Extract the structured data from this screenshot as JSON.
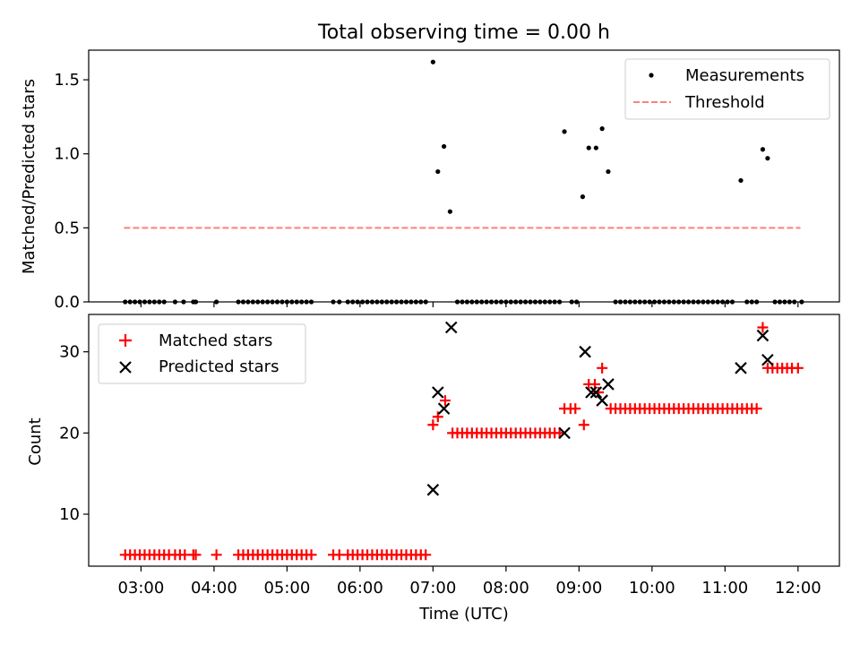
{
  "title": "Total observing time = 0.00 h",
  "chart_data": [
    {
      "type": "scatter",
      "ylabel": "Matched/Predicted stars",
      "xlabel": "",
      "xlim": [
        "02:17",
        "12:34"
      ],
      "ylim": [
        0,
        1.7
      ],
      "yticks": [
        0.0,
        0.5,
        1.0,
        1.5
      ],
      "yticklabels": [
        "0.0",
        "0.5",
        "1.0",
        "1.5"
      ],
      "grid": false,
      "legend_position": "top-right",
      "legend": {
        "measurements": "Measurements",
        "threshold": "Threshold"
      },
      "colors": {
        "measurements": "#000000",
        "threshold": "#ff7f7f"
      },
      "threshold": {
        "value": 0.5,
        "x_start": "02:46",
        "x_end": "12:02"
      },
      "series": [
        {
          "name": "Measurements",
          "points": [
            [
              "02:47",
              0
            ],
            [
              "02:51",
              0
            ],
            [
              "02:55",
              0
            ],
            [
              "02:59",
              0
            ],
            [
              "03:03",
              0
            ],
            [
              "03:07",
              0
            ],
            [
              "03:11",
              0
            ],
            [
              "03:15",
              0
            ],
            [
              "03:19",
              0
            ],
            [
              "03:28",
              0
            ],
            [
              "03:35",
              0
            ],
            [
              "03:43",
              0
            ],
            [
              "03:45",
              0
            ],
            [
              "04:02",
              0
            ],
            [
              "04:20",
              0
            ],
            [
              "04:24",
              0
            ],
            [
              "04:28",
              0
            ],
            [
              "04:32",
              0
            ],
            [
              "04:36",
              0
            ],
            [
              "04:40",
              0
            ],
            [
              "04:44",
              0
            ],
            [
              "04:48",
              0
            ],
            [
              "04:52",
              0
            ],
            [
              "04:56",
              0
            ],
            [
              "05:00",
              0
            ],
            [
              "05:04",
              0
            ],
            [
              "05:08",
              0
            ],
            [
              "05:12",
              0
            ],
            [
              "05:16",
              0
            ],
            [
              "05:20",
              0
            ],
            [
              "05:38",
              0
            ],
            [
              "05:43",
              0
            ],
            [
              "05:50",
              0
            ],
            [
              "05:54",
              0
            ],
            [
              "05:58",
              0
            ],
            [
              "06:02",
              0
            ],
            [
              "06:06",
              0
            ],
            [
              "06:10",
              0
            ],
            [
              "06:14",
              0
            ],
            [
              "06:18",
              0
            ],
            [
              "06:22",
              0
            ],
            [
              "06:26",
              0
            ],
            [
              "06:30",
              0
            ],
            [
              "06:34",
              0
            ],
            [
              "06:38",
              0
            ],
            [
              "06:42",
              0
            ],
            [
              "06:46",
              0
            ],
            [
              "06:50",
              0
            ],
            [
              "06:54",
              0
            ],
            [
              "07:00",
              1.62
            ],
            [
              "07:04",
              0.88
            ],
            [
              "07:09",
              1.05
            ],
            [
              "07:14",
              0.61
            ],
            [
              "07:20",
              0
            ],
            [
              "07:24",
              0
            ],
            [
              "07:28",
              0
            ],
            [
              "07:32",
              0
            ],
            [
              "07:36",
              0
            ],
            [
              "07:40",
              0
            ],
            [
              "07:44",
              0
            ],
            [
              "07:48",
              0
            ],
            [
              "07:52",
              0
            ],
            [
              "07:56",
              0
            ],
            [
              "08:00",
              0
            ],
            [
              "08:04",
              0
            ],
            [
              "08:08",
              0
            ],
            [
              "08:12",
              0
            ],
            [
              "08:16",
              0
            ],
            [
              "08:20",
              0
            ],
            [
              "08:24",
              0
            ],
            [
              "08:28",
              0
            ],
            [
              "08:32",
              0
            ],
            [
              "08:36",
              0
            ],
            [
              "08:40",
              0
            ],
            [
              "08:44",
              0
            ],
            [
              "08:48",
              1.15
            ],
            [
              "08:54",
              0
            ],
            [
              "08:58",
              0
            ],
            [
              "09:03",
              0.71
            ],
            [
              "09:08",
              1.04
            ],
            [
              "09:14",
              1.04
            ],
            [
              "09:19",
              1.17
            ],
            [
              "09:24",
              0.88
            ],
            [
              "09:30",
              0
            ],
            [
              "09:34",
              0
            ],
            [
              "09:38",
              0
            ],
            [
              "09:42",
              0
            ],
            [
              "09:46",
              0
            ],
            [
              "09:50",
              0
            ],
            [
              "09:54",
              0
            ],
            [
              "09:58",
              0
            ],
            [
              "10:02",
              0
            ],
            [
              "10:06",
              0
            ],
            [
              "10:10",
              0
            ],
            [
              "10:14",
              0
            ],
            [
              "10:18",
              0
            ],
            [
              "10:22",
              0
            ],
            [
              "10:26",
              0
            ],
            [
              "10:30",
              0
            ],
            [
              "10:34",
              0
            ],
            [
              "10:38",
              0
            ],
            [
              "10:42",
              0
            ],
            [
              "10:46",
              0
            ],
            [
              "10:50",
              0
            ],
            [
              "10:54",
              0
            ],
            [
              "10:58",
              0
            ],
            [
              "11:02",
              0
            ],
            [
              "11:06",
              0
            ],
            [
              "11:13",
              0.82
            ],
            [
              "11:18",
              0
            ],
            [
              "11:22",
              0
            ],
            [
              "11:26",
              0
            ],
            [
              "11:31",
              1.03
            ],
            [
              "11:35",
              0.97
            ],
            [
              "11:41",
              0
            ],
            [
              "11:45",
              0
            ],
            [
              "11:49",
              0
            ],
            [
              "11:53",
              0
            ],
            [
              "11:57",
              0
            ],
            [
              "12:03",
              0
            ]
          ]
        }
      ]
    },
    {
      "type": "scatter",
      "ylabel": "Count",
      "xlabel": "Time (UTC)",
      "xlim": [
        "02:17",
        "12:34"
      ],
      "ylim": [
        3.6,
        34.6
      ],
      "yticks": [
        10,
        20,
        30
      ],
      "yticklabels": [
        "10",
        "20",
        "30"
      ],
      "xticks": [
        "03:00",
        "04:00",
        "05:00",
        "06:00",
        "07:00",
        "08:00",
        "09:00",
        "10:00",
        "11:00",
        "12:00"
      ],
      "xticklabels": [
        "03:00",
        "04:00",
        "05:00",
        "06:00",
        "07:00",
        "08:00",
        "09:00",
        "10:00",
        "11:00",
        "12:00"
      ],
      "grid": false,
      "legend_position": "top-left",
      "colors": {
        "matched": "#ff0000",
        "predicted": "#000000"
      },
      "series": [
        {
          "name": "Matched stars",
          "marker": "plus",
          "points": [
            [
              "02:47",
              5
            ],
            [
              "02:51",
              5
            ],
            [
              "02:55",
              5
            ],
            [
              "02:59",
              5
            ],
            [
              "03:03",
              5
            ],
            [
              "03:07",
              5
            ],
            [
              "03:11",
              5
            ],
            [
              "03:15",
              5
            ],
            [
              "03:19",
              5
            ],
            [
              "03:23",
              5
            ],
            [
              "03:28",
              5
            ],
            [
              "03:32",
              5
            ],
            [
              "03:36",
              5
            ],
            [
              "03:43",
              5
            ],
            [
              "03:45",
              5
            ],
            [
              "04:02",
              5
            ],
            [
              "04:20",
              5
            ],
            [
              "04:24",
              5
            ],
            [
              "04:28",
              5
            ],
            [
              "04:32",
              5
            ],
            [
              "04:36",
              5
            ],
            [
              "04:40",
              5
            ],
            [
              "04:44",
              5
            ],
            [
              "04:48",
              5
            ],
            [
              "04:52",
              5
            ],
            [
              "04:56",
              5
            ],
            [
              "05:00",
              5
            ],
            [
              "05:04",
              5
            ],
            [
              "05:08",
              5
            ],
            [
              "05:12",
              5
            ],
            [
              "05:16",
              5
            ],
            [
              "05:20",
              5
            ],
            [
              "05:38",
              5
            ],
            [
              "05:43",
              5
            ],
            [
              "05:50",
              5
            ],
            [
              "05:54",
              5
            ],
            [
              "05:58",
              5
            ],
            [
              "06:02",
              5
            ],
            [
              "06:06",
              5
            ],
            [
              "06:10",
              5
            ],
            [
              "06:14",
              5
            ],
            [
              "06:18",
              5
            ],
            [
              "06:22",
              5
            ],
            [
              "06:26",
              5
            ],
            [
              "06:30",
              5
            ],
            [
              "06:34",
              5
            ],
            [
              "06:38",
              5
            ],
            [
              "06:42",
              5
            ],
            [
              "06:46",
              5
            ],
            [
              "06:50",
              5
            ],
            [
              "06:54",
              5
            ],
            [
              "07:00",
              21
            ],
            [
              "07:04",
              22
            ],
            [
              "07:10",
              24
            ],
            [
              "07:16",
              20
            ],
            [
              "07:20",
              20
            ],
            [
              "07:24",
              20
            ],
            [
              "07:28",
              20
            ],
            [
              "07:32",
              20
            ],
            [
              "07:36",
              20
            ],
            [
              "07:40",
              20
            ],
            [
              "07:44",
              20
            ],
            [
              "07:48",
              20
            ],
            [
              "07:52",
              20
            ],
            [
              "07:56",
              20
            ],
            [
              "08:00",
              20
            ],
            [
              "08:04",
              20
            ],
            [
              "08:08",
              20
            ],
            [
              "08:12",
              20
            ],
            [
              "08:16",
              20
            ],
            [
              "08:20",
              20
            ],
            [
              "08:24",
              20
            ],
            [
              "08:28",
              20
            ],
            [
              "08:32",
              20
            ],
            [
              "08:36",
              20
            ],
            [
              "08:40",
              20
            ],
            [
              "08:44",
              20
            ],
            [
              "08:48",
              23
            ],
            [
              "08:53",
              23
            ],
            [
              "08:57",
              23
            ],
            [
              "09:04",
              21
            ],
            [
              "09:08",
              26
            ],
            [
              "09:13",
              26
            ],
            [
              "09:16",
              25
            ],
            [
              "09:19",
              28
            ],
            [
              "09:26",
              23
            ],
            [
              "09:30",
              23
            ],
            [
              "09:34",
              23
            ],
            [
              "09:38",
              23
            ],
            [
              "09:42",
              23
            ],
            [
              "09:46",
              23
            ],
            [
              "09:50",
              23
            ],
            [
              "09:54",
              23
            ],
            [
              "09:58",
              23
            ],
            [
              "10:02",
              23
            ],
            [
              "10:06",
              23
            ],
            [
              "10:10",
              23
            ],
            [
              "10:14",
              23
            ],
            [
              "10:18",
              23
            ],
            [
              "10:22",
              23
            ],
            [
              "10:26",
              23
            ],
            [
              "10:30",
              23
            ],
            [
              "10:34",
              23
            ],
            [
              "10:38",
              23
            ],
            [
              "10:42",
              23
            ],
            [
              "10:46",
              23
            ],
            [
              "10:50",
              23
            ],
            [
              "10:54",
              23
            ],
            [
              "10:58",
              23
            ],
            [
              "11:02",
              23
            ],
            [
              "11:06",
              23
            ],
            [
              "11:10",
              23
            ],
            [
              "11:14",
              23
            ],
            [
              "11:18",
              23
            ],
            [
              "11:22",
              23
            ],
            [
              "11:26",
              23
            ],
            [
              "11:31",
              33
            ],
            [
              "11:35",
              28
            ],
            [
              "11:39",
              28
            ],
            [
              "11:43",
              28
            ],
            [
              "11:47",
              28
            ],
            [
              "11:51",
              28
            ],
            [
              "11:55",
              28
            ],
            [
              "12:00",
              28
            ]
          ]
        },
        {
          "name": "Predicted stars",
          "marker": "x",
          "points": [
            [
              "07:00",
              13
            ],
            [
              "07:04",
              25
            ],
            [
              "07:09",
              23
            ],
            [
              "07:15",
              33
            ],
            [
              "08:48",
              20
            ],
            [
              "09:05",
              30
            ],
            [
              "09:10",
              25
            ],
            [
              "09:14",
              25
            ],
            [
              "09:19",
              24
            ],
            [
              "09:24",
              26
            ],
            [
              "11:13",
              28
            ],
            [
              "11:31",
              32
            ],
            [
              "11:35",
              29
            ]
          ]
        }
      ]
    }
  ]
}
